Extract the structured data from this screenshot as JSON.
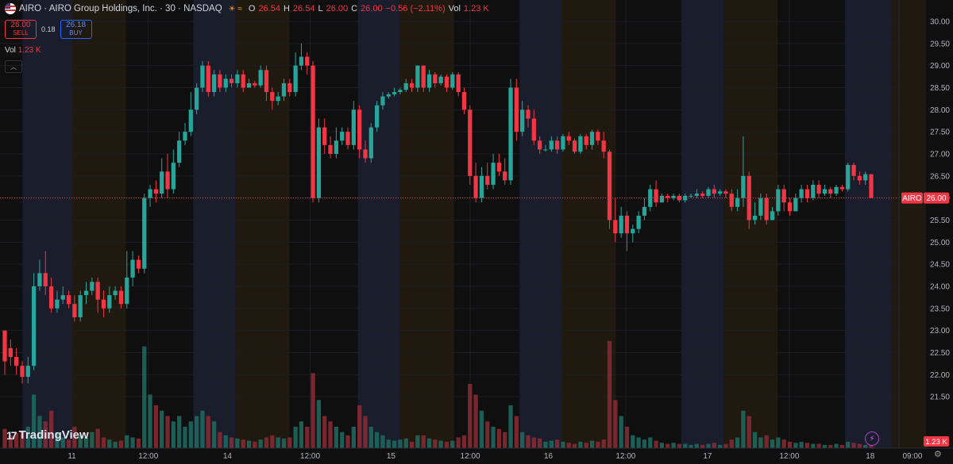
{
  "header": {
    "symbol": "AIRO · AIRO Group Holdings, Inc. · 30 · NASDAQ",
    "market_glyph": "☀ ≈",
    "o_label": "O",
    "o_value": "26.54",
    "h_label": "H",
    "h_value": "26.54",
    "l_label": "L",
    "l_value": "26.00",
    "c_label": "C",
    "c_value": "26.00",
    "change": "−0.56 (−2.11%)",
    "vol_label": "Vol",
    "vol_value": "1.23 K"
  },
  "trade": {
    "sell_price": "26.00",
    "sell_label": "SELL",
    "spread": "0.18",
    "buy_price": "26.18",
    "buy_label": "BUY"
  },
  "volume_legend": {
    "label": "Vol",
    "value": "1.23 K"
  },
  "branding": {
    "logo_text": "TradingView",
    "logo_mark": "17"
  },
  "colors": {
    "up": "#26a69a",
    "down": "#f23645",
    "bg": "#0f0f0f",
    "premarket": "#1a1d2c",
    "afterhours": "#20190f"
  },
  "chart_data": {
    "type": "candlestick",
    "symbol": "AIRO",
    "interval": "30",
    "ylim": [
      21.0,
      30.0
    ],
    "y_ticks": [
      "30.00",
      "29.50",
      "29.00",
      "28.50",
      "28.00",
      "27.50",
      "27.00",
      "26.50",
      "26.00",
      "25.50",
      "25.00",
      "24.50",
      "24.00",
      "23.50",
      "23.00",
      "22.50",
      "22.00",
      "21.50"
    ],
    "x_ticks": [
      {
        "label": "11",
        "pos": 0.08
      },
      {
        "label": "12:00",
        "pos": 0.165
      },
      {
        "label": "14",
        "pos": 0.253
      },
      {
        "label": "12:00",
        "pos": 0.345
      },
      {
        "label": "15",
        "pos": 0.435
      },
      {
        "label": "12:00",
        "pos": 0.523
      },
      {
        "label": "16",
        "pos": 0.61
      },
      {
        "label": "12:00",
        "pos": 0.696
      },
      {
        "label": "17",
        "pos": 0.787
      },
      {
        "label": "12:00",
        "pos": 0.878
      },
      {
        "label": "18",
        "pos": 0.968
      }
    ],
    "x_tick_last": {
      "label": "09:00",
      "pos": 1.015
    },
    "sessions": [
      {
        "type": "pre",
        "start": 0.025,
        "end": 0.08
      },
      {
        "type": "after",
        "start": 0.08,
        "end": 0.14
      },
      {
        "type": "pre",
        "start": 0.215,
        "end": 0.262
      },
      {
        "type": "after",
        "start": 0.262,
        "end": 0.322
      },
      {
        "type": "pre",
        "start": 0.398,
        "end": 0.445
      },
      {
        "type": "after",
        "start": 0.445,
        "end": 0.505
      },
      {
        "type": "pre",
        "start": 0.578,
        "end": 0.625
      },
      {
        "type": "after",
        "start": 0.625,
        "end": 0.685
      },
      {
        "type": "pre",
        "start": 0.758,
        "end": 0.805
      },
      {
        "type": "after",
        "start": 0.805,
        "end": 0.865
      },
      {
        "type": "pre",
        "start": 0.94,
        "end": 0.992
      },
      {
        "type": "after",
        "start": 0.992,
        "end": 1.03
      }
    ],
    "last_price": 26.0,
    "last_price_label": "26.00",
    "symbol_tag": "AIRO",
    "last_volume_label": "1.23 K",
    "candles": [
      [
        23.0,
        22.3,
        23.0,
        22.0,
        0.18
      ],
      [
        22.6,
        22.4,
        22.8,
        22.2,
        0.12
      ],
      [
        22.4,
        22.2,
        22.6,
        22.0,
        0.14
      ],
      [
        22.2,
        21.95,
        22.3,
        21.8,
        0.16
      ],
      [
        21.95,
        22.2,
        22.4,
        21.8,
        0.2
      ],
      [
        22.2,
        24.0,
        24.3,
        22.1,
        0.5
      ],
      [
        24.0,
        24.3,
        24.6,
        23.9,
        0.3
      ],
      [
        24.3,
        24.0,
        24.8,
        23.8,
        0.25
      ],
      [
        24.0,
        23.5,
        24.2,
        23.4,
        0.35
      ],
      [
        23.5,
        23.7,
        23.9,
        23.4,
        0.15
      ],
      [
        23.7,
        23.8,
        24.0,
        23.6,
        0.1
      ],
      [
        23.8,
        23.6,
        23.9,
        23.5,
        0.08
      ],
      [
        23.6,
        23.3,
        23.8,
        23.2,
        0.2
      ],
      [
        23.3,
        23.8,
        23.9,
        23.2,
        0.12
      ],
      [
        23.8,
        23.9,
        24.1,
        23.6,
        0.1
      ],
      [
        23.9,
        24.1,
        24.2,
        23.8,
        0.15
      ],
      [
        24.1,
        23.7,
        24.2,
        23.4,
        0.18
      ],
      [
        23.7,
        23.5,
        23.9,
        23.3,
        0.1
      ],
      [
        23.5,
        23.8,
        24.0,
        23.4,
        0.08
      ],
      [
        23.8,
        23.9,
        24.0,
        23.7,
        0.06
      ],
      [
        23.9,
        23.6,
        24.0,
        23.5,
        0.07
      ],
      [
        23.6,
        24.2,
        24.8,
        23.5,
        0.12
      ],
      [
        24.2,
        24.6,
        24.8,
        24.0,
        0.1
      ],
      [
        24.6,
        24.4,
        24.7,
        24.3,
        0.09
      ],
      [
        24.4,
        26.0,
        26.1,
        24.3,
        0.95
      ],
      [
        26.0,
        26.2,
        26.3,
        25.8,
        0.5
      ],
      [
        26.2,
        26.1,
        26.4,
        25.9,
        0.4
      ],
      [
        26.1,
        26.6,
        26.9,
        26.0,
        0.35
      ],
      [
        26.6,
        26.2,
        27.0,
        26.0,
        0.3
      ],
      [
        26.2,
        26.8,
        27.1,
        26.1,
        0.25
      ],
      [
        26.8,
        27.3,
        27.5,
        26.7,
        0.3
      ],
      [
        27.3,
        27.5,
        27.7,
        27.2,
        0.2
      ],
      [
        27.5,
        28.0,
        28.4,
        27.4,
        0.25
      ],
      [
        28.0,
        28.5,
        28.6,
        27.9,
        0.3
      ],
      [
        28.5,
        29.0,
        29.1,
        28.4,
        0.35
      ],
      [
        29.0,
        28.4,
        29.1,
        28.3,
        0.3
      ],
      [
        28.4,
        28.8,
        28.9,
        28.3,
        0.25
      ],
      [
        28.8,
        28.5,
        28.9,
        28.4,
        0.15
      ],
      [
        28.5,
        28.7,
        28.8,
        28.4,
        0.12
      ],
      [
        28.7,
        28.6,
        28.8,
        28.5,
        0.1
      ],
      [
        28.6,
        28.8,
        28.9,
        28.5,
        0.09
      ],
      [
        28.8,
        28.5,
        28.9,
        28.4,
        0.08
      ],
      [
        28.5,
        28.6,
        28.7,
        28.5,
        0.07
      ],
      [
        28.6,
        28.55,
        28.65,
        28.5,
        0.06
      ],
      [
        28.55,
        28.9,
        29.0,
        28.5,
        0.08
      ],
      [
        28.9,
        28.4,
        29.0,
        28.2,
        0.1
      ],
      [
        28.4,
        28.2,
        28.5,
        28.0,
        0.12
      ],
      [
        28.2,
        28.3,
        28.4,
        28.1,
        0.1
      ],
      [
        28.3,
        28.6,
        28.7,
        28.2,
        0.09
      ],
      [
        28.6,
        28.4,
        28.7,
        28.3,
        0.1
      ],
      [
        28.4,
        29.0,
        29.3,
        28.3,
        0.2
      ],
      [
        29.0,
        29.2,
        29.5,
        28.9,
        0.25
      ],
      [
        29.2,
        29.0,
        29.3,
        28.8,
        0.2
      ],
      [
        29.0,
        26.0,
        29.1,
        25.9,
        0.7
      ],
      [
        26.0,
        27.6,
        27.8,
        25.9,
        0.45
      ],
      [
        27.6,
        27.2,
        27.8,
        27.0,
        0.3
      ],
      [
        27.2,
        27.0,
        27.4,
        26.9,
        0.25
      ],
      [
        27.0,
        27.3,
        27.6,
        26.9,
        0.2
      ],
      [
        27.3,
        27.5,
        27.6,
        27.2,
        0.15
      ],
      [
        27.5,
        27.2,
        27.6,
        27.1,
        0.12
      ],
      [
        27.2,
        28.0,
        28.2,
        27.1,
        0.2
      ],
      [
        28.0,
        27.1,
        28.1,
        26.9,
        0.4
      ],
      [
        27.1,
        26.9,
        27.3,
        26.8,
        0.3
      ],
      [
        26.9,
        27.6,
        27.7,
        26.8,
        0.2
      ],
      [
        27.6,
        28.1,
        28.2,
        27.5,
        0.15
      ],
      [
        28.1,
        28.3,
        28.4,
        28.0,
        0.12
      ],
      [
        28.3,
        28.35,
        28.4,
        28.25,
        0.08
      ],
      [
        28.35,
        28.4,
        28.5,
        28.3,
        0.07
      ],
      [
        28.4,
        28.45,
        28.5,
        28.35,
        0.08
      ],
      [
        28.45,
        28.6,
        28.7,
        28.4,
        0.09
      ],
      [
        28.6,
        28.5,
        28.7,
        28.4,
        0.06
      ],
      [
        28.5,
        29.0,
        29.0,
        28.4,
        0.12
      ],
      [
        29.0,
        28.5,
        29.0,
        28.4,
        0.12
      ],
      [
        28.5,
        28.8,
        28.9,
        28.4,
        0.09
      ],
      [
        28.8,
        28.6,
        28.85,
        28.5,
        0.08
      ],
      [
        28.6,
        28.75,
        28.8,
        28.55,
        0.07
      ],
      [
        28.75,
        28.5,
        28.8,
        28.4,
        0.06
      ],
      [
        28.5,
        28.8,
        28.85,
        28.45,
        0.07
      ],
      [
        28.8,
        28.4,
        28.85,
        28.3,
        0.1
      ],
      [
        28.4,
        28.0,
        28.5,
        27.9,
        0.12
      ],
      [
        28.0,
        26.5,
        28.1,
        26.3,
        0.6
      ],
      [
        26.5,
        26.0,
        26.8,
        25.9,
        0.5
      ],
      [
        26.0,
        26.5,
        26.7,
        25.9,
        0.35
      ],
      [
        26.5,
        26.3,
        26.8,
        26.2,
        0.25
      ],
      [
        26.3,
        26.8,
        27.0,
        26.2,
        0.2
      ],
      [
        26.8,
        26.6,
        27.0,
        26.5,
        0.18
      ],
      [
        26.6,
        26.4,
        26.9,
        26.3,
        0.15
      ],
      [
        26.4,
        28.5,
        28.7,
        26.3,
        0.4
      ],
      [
        28.5,
        27.5,
        28.7,
        27.3,
        0.3
      ],
      [
        27.5,
        28.0,
        28.2,
        27.4,
        0.15
      ],
      [
        28.0,
        27.8,
        28.1,
        27.6,
        0.12
      ],
      [
        27.8,
        27.3,
        28.0,
        27.2,
        0.1
      ],
      [
        27.3,
        27.1,
        27.4,
        27.0,
        0.09
      ],
      [
        27.1,
        27.1,
        27.2,
        27.05,
        0.06
      ],
      [
        27.1,
        27.3,
        27.4,
        27.05,
        0.07
      ],
      [
        27.3,
        27.1,
        27.4,
        27.0,
        0.08
      ],
      [
        27.1,
        27.4,
        27.45,
        27.05,
        0.06
      ],
      [
        27.4,
        27.3,
        27.5,
        27.2,
        0.05
      ],
      [
        27.3,
        27.05,
        27.35,
        27.0,
        0.04
      ],
      [
        27.05,
        27.4,
        27.45,
        27.0,
        0.06
      ],
      [
        27.4,
        27.2,
        27.45,
        27.1,
        0.05
      ],
      [
        27.2,
        27.5,
        27.55,
        27.1,
        0.07
      ],
      [
        27.5,
        27.3,
        27.55,
        27.2,
        0.06
      ],
      [
        27.3,
        27.05,
        27.5,
        26.9,
        0.08
      ],
      [
        27.05,
        25.5,
        27.1,
        25.3,
        1.0
      ],
      [
        25.5,
        25.2,
        26.0,
        25.0,
        0.45
      ],
      [
        25.2,
        25.6,
        25.8,
        25.1,
        0.3
      ],
      [
        25.6,
        25.2,
        25.7,
        24.8,
        0.2
      ],
      [
        25.2,
        25.3,
        25.4,
        25.0,
        0.12
      ],
      [
        25.3,
        25.6,
        25.7,
        25.2,
        0.1
      ],
      [
        25.6,
        25.8,
        26.0,
        25.5,
        0.08
      ],
      [
        25.8,
        26.2,
        26.3,
        25.7,
        0.1
      ],
      [
        26.2,
        25.9,
        26.4,
        25.8,
        0.07
      ],
      [
        25.9,
        26.05,
        26.1,
        25.9,
        0.05
      ],
      [
        26.05,
        26.0,
        26.1,
        25.9,
        0.04
      ],
      [
        26.0,
        26.05,
        26.1,
        25.95,
        0.05
      ],
      [
        26.05,
        25.95,
        26.1,
        25.9,
        0.04
      ],
      [
        25.95,
        26.05,
        26.1,
        25.9,
        0.04
      ],
      [
        26.05,
        26.05,
        26.1,
        26.0,
        0.03
      ],
      [
        26.05,
        26.1,
        26.2,
        26.0,
        0.04
      ],
      [
        26.1,
        26.05,
        26.15,
        26.0,
        0.03
      ],
      [
        26.05,
        26.2,
        26.25,
        26.0,
        0.04
      ],
      [
        26.2,
        26.1,
        26.3,
        26.0,
        0.05
      ],
      [
        26.1,
        26.15,
        26.2,
        26.05,
        0.03
      ],
      [
        26.15,
        26.1,
        26.2,
        26.0,
        0.04
      ],
      [
        26.1,
        25.8,
        26.2,
        25.7,
        0.08
      ],
      [
        25.8,
        26.0,
        26.2,
        25.7,
        0.1
      ],
      [
        26.0,
        26.5,
        27.4,
        25.8,
        0.35
      ],
      [
        26.5,
        25.5,
        26.6,
        25.3,
        0.3
      ],
      [
        25.5,
        25.6,
        25.9,
        25.4,
        0.15
      ],
      [
        25.6,
        26.0,
        26.1,
        25.5,
        0.1
      ],
      [
        26.0,
        25.5,
        26.1,
        25.4,
        0.12
      ],
      [
        25.5,
        25.7,
        25.8,
        25.5,
        0.08
      ],
      [
        25.7,
        26.2,
        26.3,
        25.6,
        0.1
      ],
      [
        26.2,
        25.9,
        26.3,
        25.7,
        0.08
      ],
      [
        25.9,
        25.7,
        26.0,
        25.6,
        0.06
      ],
      [
        25.7,
        26.0,
        26.1,
        25.7,
        0.05
      ],
      [
        26.0,
        26.2,
        26.3,
        25.9,
        0.06
      ],
      [
        26.2,
        26.0,
        26.3,
        25.9,
        0.05
      ],
      [
        26.0,
        26.3,
        26.4,
        25.95,
        0.04
      ],
      [
        26.3,
        26.1,
        26.4,
        26.0,
        0.04
      ],
      [
        26.1,
        26.2,
        26.3,
        26.05,
        0.03
      ],
      [
        26.2,
        26.1,
        26.25,
        26.0,
        0.03
      ],
      [
        26.1,
        26.25,
        26.3,
        26.05,
        0.04
      ],
      [
        26.25,
        26.2,
        26.3,
        26.15,
        0.03
      ],
      [
        26.2,
        26.75,
        26.8,
        26.15,
        0.06
      ],
      [
        26.75,
        26.5,
        26.8,
        26.4,
        0.05
      ],
      [
        26.5,
        26.4,
        26.6,
        26.3,
        0.04
      ],
      [
        26.4,
        26.54,
        26.6,
        26.3,
        0.03
      ],
      [
        26.54,
        26.0,
        26.54,
        26.0,
        0.03
      ]
    ]
  }
}
